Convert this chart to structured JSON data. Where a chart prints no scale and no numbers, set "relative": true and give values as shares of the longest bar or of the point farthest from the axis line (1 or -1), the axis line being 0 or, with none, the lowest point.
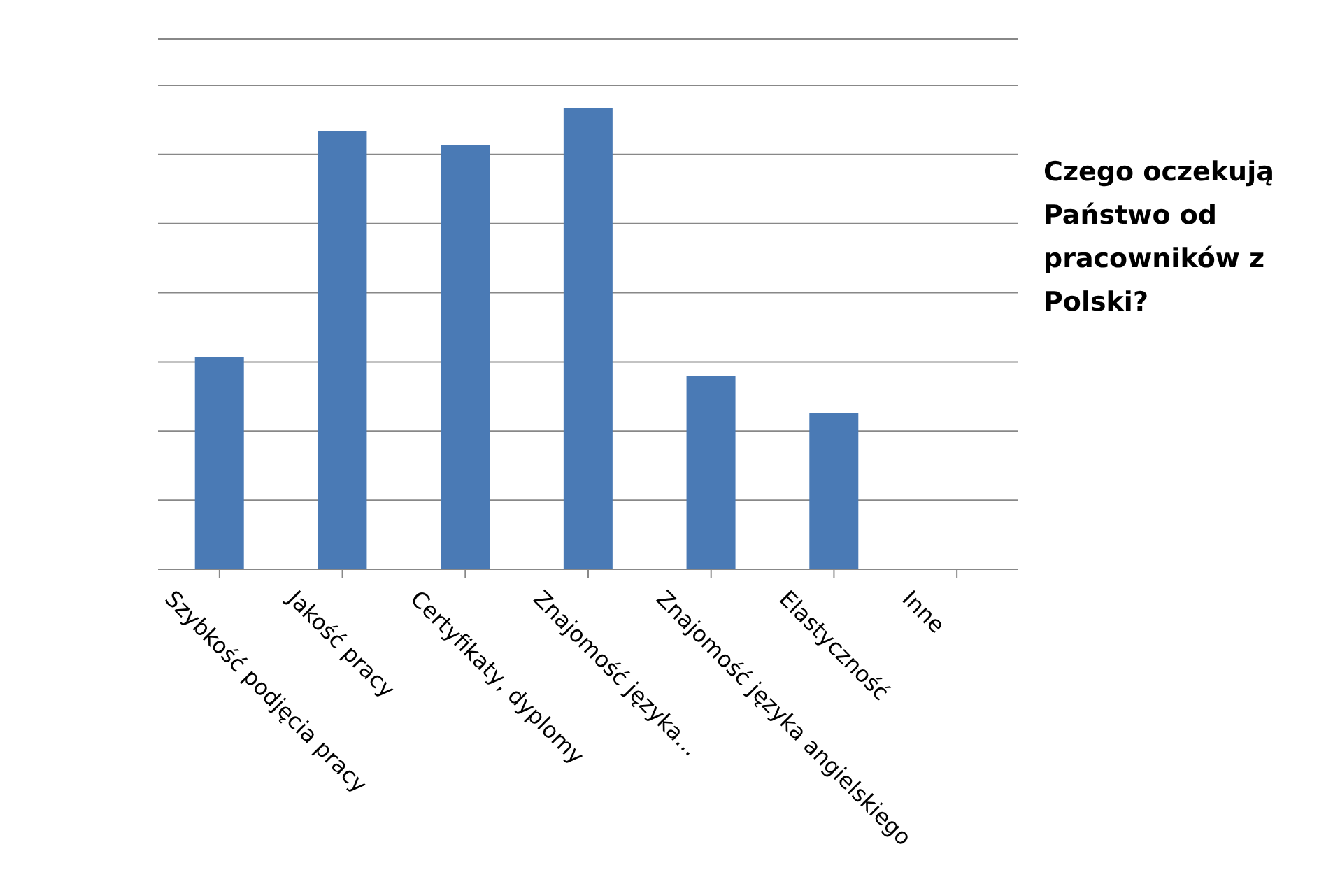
{
  "chart_data": {
    "type": "bar",
    "title": "Czego oczekują Państwo od pracowników z Polski?",
    "relative": true,
    "categories": [
      "Szybkość  podjęcia pracy",
      "Jakość pracy",
      "Certyfikaty, dyplomy",
      "Znajomość języka...",
      "Znajomość języka angielskiego",
      "Elastyczność",
      "Inne"
    ],
    "values": [
      0.46,
      0.95,
      0.92,
      1,
      0.42,
      0.34,
      0
    ],
    "color": "#4a7ab5",
    "grid": "y"
  }
}
